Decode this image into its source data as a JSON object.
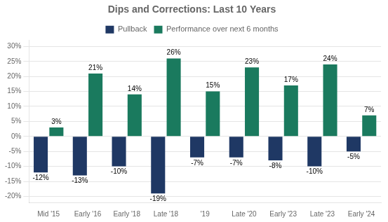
{
  "chart_data": {
    "type": "bar",
    "title": "Dips and Corrections: Last 10 Years",
    "categories": [
      "Mid '15",
      "Early '16",
      "Early '18",
      "Late '18",
      "'19",
      "Late '20",
      "Early '23",
      "Late '23",
      "Early '24"
    ],
    "series": [
      {
        "name": "Pullback",
        "color": "#1f3864",
        "values": [
          -12,
          -13,
          -10,
          -19,
          -7,
          -7,
          -8,
          -10,
          -5
        ],
        "value_labels": [
          "-12%",
          "-13%",
          "-10%",
          "-19%",
          "-7%",
          "-7%",
          "-8%",
          "-10%",
          "-5%"
        ]
      },
      {
        "name": "Performance over next 6 months",
        "color": "#1a7a5e",
        "values": [
          3,
          21,
          14,
          26,
          15,
          23,
          17,
          24,
          7
        ],
        "value_labels": [
          "3%",
          "21%",
          "14%",
          "26%",
          "15%",
          "23%",
          "17%",
          "24%",
          "7%"
        ]
      }
    ],
    "ylim": [
      -22,
      32
    ],
    "yticks": [
      {
        "value": -20,
        "label": "-20%"
      },
      {
        "value": -15,
        "label": "-15%"
      },
      {
        "value": -10,
        "label": "-10%"
      },
      {
        "value": -5,
        "label": "-5%"
      },
      {
        "value": 0,
        "label": "0%"
      },
      {
        "value": 5,
        "label": "5%"
      },
      {
        "value": 10,
        "label": "10%"
      },
      {
        "value": 15,
        "label": "15%"
      },
      {
        "value": 20,
        "label": "20%"
      },
      {
        "value": 25,
        "label": "25%"
      },
      {
        "value": 30,
        "label": "30%"
      }
    ],
    "grid": true,
    "legend": "top",
    "data_labels": true
  }
}
